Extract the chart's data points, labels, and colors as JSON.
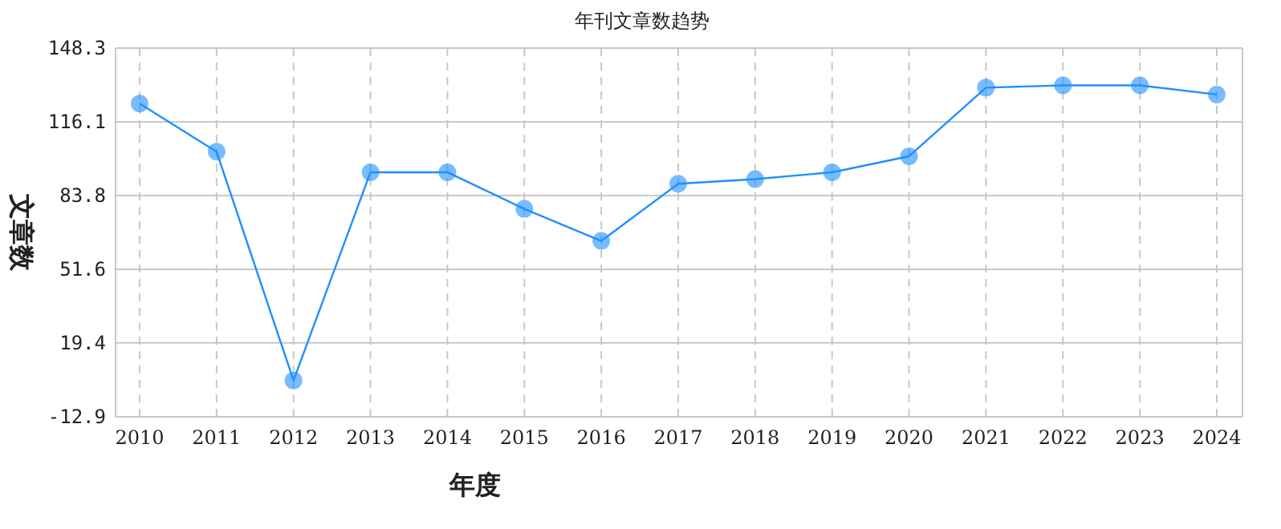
{
  "chart_data": {
    "type": "line",
    "title": "年刊文章数趋势",
    "xlabel": "年度",
    "ylabel": "文章数",
    "categories": [
      "2010",
      "2011",
      "2012",
      "2013",
      "2014",
      "2015",
      "2016",
      "2017",
      "2018",
      "2019",
      "2020",
      "2021",
      "2022",
      "2023",
      "2024"
    ],
    "series": [
      {
        "color": "#1e90ff",
        "values": [
          124,
          103,
          3,
          94,
          94,
          78,
          64,
          89,
          91,
          94,
          101,
          131,
          132,
          132,
          128
        ]
      }
    ],
    "ylim": [
      -12.9,
      148.3
    ],
    "yticks": [
      -12.9,
      19.4,
      51.6,
      83.8,
      116.1,
      148.3
    ],
    "grid": true,
    "marker": "circle",
    "line_style": "solid"
  }
}
